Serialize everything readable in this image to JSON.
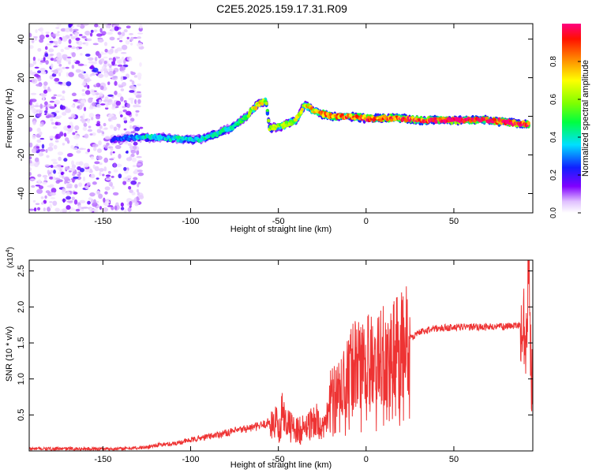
{
  "title": "C2E5.2025.159.17.31.R09",
  "chart_data": [
    {
      "type": "heatmap",
      "xlabel": "Height of straight line (km)",
      "ylabel": "Frequency (Hz)",
      "xlim": [
        -192,
        95
      ],
      "ylim": [
        -50,
        48
      ],
      "xticks": [
        -150,
        -100,
        -50,
        0,
        50
      ],
      "xtick_labels": [
        "-150",
        "-100",
        "-50",
        "0",
        "50"
      ],
      "yticks": [
        -40,
        -20,
        0,
        20,
        40
      ],
      "ytick_labels": [
        "-40",
        "-20",
        "0",
        "20",
        "40"
      ],
      "colorbar": {
        "label": "Normalized spectral amplitude",
        "range": [
          0,
          1
        ],
        "ticks": [
          0.0,
          0.2,
          0.4,
          0.6,
          0.8
        ],
        "tick_labels": [
          "0.0",
          "0.2",
          "0.4",
          "0.6",
          "0.8"
        ]
      },
      "noise_region": {
        "x_range": [
          -192,
          -128
        ],
        "freq_range": [
          -50,
          48
        ],
        "amplitude": 0.15
      },
      "ridge": [
        {
          "x": -145,
          "f": -12,
          "a": 0.2
        },
        {
          "x": -135,
          "f": -11,
          "a": 0.3
        },
        {
          "x": -125,
          "f": -11,
          "a": 0.4
        },
        {
          "x": -115,
          "f": -11,
          "a": 0.35
        },
        {
          "x": -105,
          "f": -12,
          "a": 0.38
        },
        {
          "x": -95,
          "f": -12,
          "a": 0.4
        },
        {
          "x": -85,
          "f": -9,
          "a": 0.4
        },
        {
          "x": -75,
          "f": -5,
          "a": 0.45
        },
        {
          "x": -68,
          "f": 0,
          "a": 0.5
        },
        {
          "x": -62,
          "f": 6,
          "a": 0.7
        },
        {
          "x": -57,
          "f": 8,
          "a": 0.6
        },
        {
          "x": -55,
          "f": -6,
          "a": 0.55
        },
        {
          "x": -48,
          "f": -5,
          "a": 0.6
        },
        {
          "x": -40,
          "f": -2,
          "a": 0.65
        },
        {
          "x": -35,
          "f": 6,
          "a": 0.7
        },
        {
          "x": -28,
          "f": 2,
          "a": 0.75
        },
        {
          "x": -20,
          "f": 0,
          "a": 0.8
        },
        {
          "x": -10,
          "f": 0,
          "a": 0.8
        },
        {
          "x": 0,
          "f": -1,
          "a": 0.85
        },
        {
          "x": 10,
          "f": -1,
          "a": 0.85
        },
        {
          "x": 20,
          "f": -1,
          "a": 0.9
        },
        {
          "x": 30,
          "f": -2,
          "a": 0.9
        },
        {
          "x": 40,
          "f": -2,
          "a": 0.95
        },
        {
          "x": 50,
          "f": -2,
          "a": 0.98
        },
        {
          "x": 60,
          "f": -2,
          "a": 0.98
        },
        {
          "x": 70,
          "f": -2,
          "a": 0.98
        },
        {
          "x": 80,
          "f": -3,
          "a": 0.95
        },
        {
          "x": 88,
          "f": -4,
          "a": 0.95
        },
        {
          "x": 93,
          "f": -4,
          "a": 0.9
        }
      ]
    },
    {
      "type": "line",
      "xlabel": "Height of straight line (km)",
      "ylabel": "SNR (10 * v/v)",
      "scale_label": "(x10",
      "scale_exponent": "4",
      "scale_suffix": ")",
      "xlim": [
        -192,
        95
      ],
      "ylim": [
        0,
        2.65
      ],
      "xticks": [
        -150,
        -100,
        -50,
        0,
        50
      ],
      "xtick_labels": [
        "-150",
        "-100",
        "-50",
        "0",
        "50"
      ],
      "yticks": [
        0.5,
        1.0,
        1.5,
        2.0,
        2.5
      ],
      "ytick_labels": [
        "0.5",
        "1.0",
        "1.5",
        "2.0",
        "2.5"
      ],
      "color": "#ee3333",
      "series": [
        {
          "x": [
            -192,
            -160,
            -140,
            -125,
            -120,
            -110,
            -100,
            -90,
            -80,
            -70,
            -60,
            -55,
            -50,
            -48,
            -45,
            -40,
            -35,
            -30,
            -27,
            -25,
            -22,
            -20,
            -15,
            -10,
            -5,
            0,
            5,
            10,
            12,
            15,
            20,
            25,
            30,
            40,
            50,
            60,
            70,
            80,
            88,
            91,
            92,
            93,
            94,
            95
          ],
          "y": [
            0.03,
            0.03,
            0.03,
            0.05,
            0.08,
            0.1,
            0.15,
            0.2,
            0.25,
            0.3,
            0.35,
            0.4,
            0.45,
            0.6,
            0.4,
            0.3,
            0.35,
            0.4,
            0.5,
            0.3,
            0.5,
            0.8,
            0.9,
            1.1,
            1.2,
            1.25,
            1.3,
            1.4,
            1.3,
            1.4,
            1.5,
            1.55,
            1.65,
            1.7,
            1.72,
            1.72,
            1.72,
            1.73,
            1.75,
            1.6,
            2.0,
            2.5,
            1.2,
            0.9
          ]
        }
      ]
    }
  ]
}
